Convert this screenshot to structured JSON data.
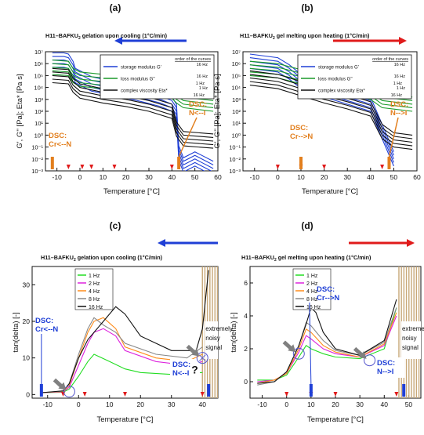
{
  "panels": [
    {
      "id": "a",
      "label": "(a)",
      "title_main": "H11–BAFKU",
      "title_sub": "2",
      "title_rest": " gelation upon cooling (1°C/min)",
      "arrow_direction": "left",
      "arrow_color": "#1f3fd6",
      "xlabel": "Temperature [°C]",
      "ylabel": "G', G'' [Pa]; Eta* [Pa s]",
      "chart_data": {
        "type": "line",
        "xlim": [
          -15,
          60
        ],
        "xticks": [
          "-10",
          "0",
          "10",
          "20",
          "30",
          "40",
          "50",
          "60"
        ],
        "ylim_log10": [
          -3,
          7
        ],
        "yticks": [
          "10⁻³",
          "10⁻²",
          "10⁻¹",
          "10⁰",
          "10¹",
          "10²",
          "10³",
          "10⁴",
          "10⁵",
          "10⁶",
          "10⁷"
        ],
        "series": [
          {
            "name": "storage modulus G'",
            "color": "#1f3fd6",
            "x": [
              -12,
              -7,
              -5,
              -3,
              -2,
              0,
              5,
              15,
              25,
              35,
              40,
              42,
              43,
              45,
              50,
              58
            ],
            "log10y": [
              6.3,
              6.3,
              6.2,
              5.6,
              5.0,
              4.8,
              4.3,
              3.9,
              3.5,
              3.0,
              2.6,
              2.0,
              -1.5,
              -2.5,
              -2.0,
              -2.8
            ]
          },
          {
            "name": "loss modulus G''",
            "color": "#1a9a2a",
            "x": [
              -12,
              -5,
              -3,
              0,
              10,
              20,
              30,
              40,
              42,
              45,
              58
            ],
            "log10y": [
              5.7,
              5.6,
              5.0,
              4.7,
              4.5,
              4.3,
              4.0,
              3.7,
              3.3,
              2.9,
              2.6
            ]
          },
          {
            "name": "complex viscosity Eta*",
            "color": "#111111",
            "x": [
              -12,
              -5,
              -3,
              0,
              10,
              20,
              30,
              40,
              42,
              45,
              58
            ],
            "log10y": [
              5.0,
              4.9,
              4.2,
              3.7,
              3.3,
              3.0,
              2.6,
              2.0,
              0.5,
              -0.3,
              -0.5
            ]
          }
        ],
        "legend": {
          "position": "top-right",
          "header": "order of the curves",
          "entries": [
            {
              "label": "storage modulus G'",
              "order_top": "16 Hz",
              "order_bottom": ""
            },
            {
              "label": "loss modulus G''",
              "order_top": "16 Hz",
              "order_bottom": "1 Hz"
            },
            {
              "label": "complex viscosity Eta*",
              "order_top": "1 Hz",
              "order_bottom": "16 Hz"
            }
          ]
        },
        "annotations": [
          {
            "text1": "DSC:",
            "text2": "Cr<--N",
            "color": "#e27f1e"
          },
          {
            "text1": "DSC:",
            "text2": "N<--I",
            "color": "#e27f1e"
          }
        ],
        "dsc_bars": [
          -12,
          43
        ],
        "red_markers": [
          -5,
          1,
          5,
          15,
          40
        ]
      }
    },
    {
      "id": "b",
      "label": "(b)",
      "title_main": "H11–BAFKU",
      "title_sub": "2",
      "title_rest": " gel melting upon heating (1°C/min)",
      "arrow_direction": "right",
      "arrow_color": "#e01b1b",
      "xlabel": "Temperature [°C]",
      "ylabel": "G', G'' [Pa]; Eta* [Pa s]",
      "chart_data": {
        "type": "line",
        "xlim": [
          -15,
          60
        ],
        "xticks": [
          "-10",
          "0",
          "10",
          "20",
          "30",
          "40",
          "50",
          "60"
        ],
        "ylim_log10": [
          -3,
          7
        ],
        "yticks": [
          "10⁻³",
          "10⁻²",
          "10⁻¹",
          "10⁰",
          "10¹",
          "10²",
          "10³",
          "10⁴",
          "10⁵",
          "10⁶",
          "10⁷"
        ],
        "series": [
          {
            "name": "storage modulus G'",
            "color": "#1f3fd6",
            "x": [
              -12,
              0,
              5,
              10,
              20,
              30,
              40,
              45,
              50
            ],
            "log10y": [
              6.2,
              5.9,
              5.3,
              4.5,
              3.8,
              3.2,
              2.6,
              0.3,
              -2.0
            ]
          },
          {
            "name": "loss modulus G''",
            "color": "#1a9a2a",
            "x": [
              -12,
              0,
              10,
              20,
              30,
              40,
              45,
              58
            ],
            "log10y": [
              5.6,
              5.4,
              4.9,
              4.4,
              4.0,
              3.6,
              2.9,
              2.6
            ]
          },
          {
            "name": "complex viscosity Eta*",
            "color": "#111111",
            "x": [
              -12,
              0,
              10,
              20,
              30,
              40,
              45,
              50,
              58
            ],
            "log10y": [
              4.8,
              4.5,
              3.9,
              3.3,
              2.8,
              2.2,
              0.3,
              -0.4,
              -0.6
            ]
          }
        ],
        "legend": {
          "position": "top-right",
          "header": "order of the curves",
          "entries": [
            {
              "label": "storage modulus G'",
              "order_top": "16 Hz",
              "order_bottom": ""
            },
            {
              "label": "loss modulus G''",
              "order_top": "16 Hz",
              "order_bottom": "1 Hz"
            },
            {
              "label": "complex viscosity Eta*",
              "order_top": "1 Hz",
              "order_bottom": "16 Hz"
            }
          ]
        },
        "annotations": [
          {
            "text1": "DSC:",
            "text2": "Cr-->N",
            "color": "#e27f1e"
          },
          {
            "text1": "DSC:",
            "text2": "N-->I",
            "color": "#e27f1e"
          }
        ],
        "dsc_bars": [
          10,
          48
        ],
        "red_markers": [
          0,
          10,
          20,
          45
        ]
      }
    },
    {
      "id": "c",
      "label": "(c)",
      "title_main": "H11–BAFKU",
      "title_sub": "2",
      "title_rest": " gelation upon cooling (1°C/min)",
      "arrow_direction": "left",
      "arrow_color": "#1f3fd6",
      "xlabel": "Temperature [°C]",
      "ylabel": "tan(delta) [-]",
      "chart_data": {
        "type": "line",
        "xlim": [
          -15,
          45
        ],
        "xticks": [
          "-10",
          "0",
          "10",
          "20",
          "30",
          "40"
        ],
        "ylim": [
          -1,
          35
        ],
        "yticks": [
          "0",
          "10",
          "20",
          "30"
        ],
        "series": [
          {
            "name": "1 Hz",
            "color": "#22dd22",
            "x": [
              -12,
              -5,
              -3,
              0,
              3,
              5,
              10,
              15,
              20,
              30,
              40
            ],
            "y": [
              0.5,
              0.6,
              1.5,
              5,
              9,
              11,
              9,
              7,
              6,
              5.5,
              6
            ]
          },
          {
            "name": "2 Hz",
            "color": "#dd22dd",
            "x": [
              -12,
              -5,
              -3,
              0,
              3,
              5,
              8,
              12,
              15,
              25,
              35,
              40
            ],
            "y": [
              0.5,
              0.7,
              2,
              8,
              14,
              17,
              18,
              16,
              12,
              9,
              8,
              9
            ]
          },
          {
            "name": "4 Hz",
            "color": "#ff8c1a",
            "x": [
              -12,
              -5,
              -3,
              0,
              3,
              5,
              8,
              12,
              15,
              25,
              35,
              40
            ],
            "y": [
              0.5,
              0.8,
              2.5,
              10,
              17,
              20,
              21,
              18,
              13,
              10,
              9,
              11
            ]
          },
          {
            "name": "8 Hz",
            "color": "#888888",
            "x": [
              -12,
              -5,
              -3,
              0,
              3,
              5,
              8,
              12,
              15,
              25,
              35,
              40
            ],
            "y": [
              0.5,
              0.9,
              3,
              11,
              18,
              21,
              19,
              17,
              14,
              11,
              10,
              13
            ]
          },
          {
            "name": "16 Hz",
            "color": "#111111",
            "x": [
              -12,
              -5,
              -3,
              0,
              3,
              5,
              8,
              12,
              15,
              20,
              30,
              38,
              40,
              42
            ],
            "y": [
              0.5,
              1.0,
              3,
              10,
              15,
              17,
              20,
              24,
              22,
              16,
              12,
              12,
              18,
              34
            ]
          }
        ],
        "legend": {
          "position": "top-left"
        },
        "annotations": [
          {
            "text1": "DSC:",
            "text2": "Cr<--N",
            "color": "#1f3fd6"
          },
          {
            "text1": "DSC:",
            "text2": "N<--I",
            "color": "#1f3fd6"
          },
          {
            "text1": "extremely",
            "text2": "noisy",
            "text3": "signal",
            "color": "#111111"
          },
          {
            "text1": "?",
            "color": "#111111"
          }
        ],
        "dsc_bars": [
          -12,
          42
        ],
        "red_markers": [
          -5,
          2,
          15,
          40
        ]
      }
    },
    {
      "id": "d",
      "label": "(d)",
      "title_main": "H11–BAFKU",
      "title_sub": "2",
      "title_rest": " gel melting upon heating (1°C/min)",
      "arrow_direction": "right",
      "arrow_color": "#e01b1b",
      "xlabel": "Temperature [°C]",
      "ylabel": "tan(delta) [-]",
      "chart_data": {
        "type": "line",
        "xlim": [
          -15,
          55
        ],
        "xticks": [
          "-10",
          "0",
          "10",
          "20",
          "30",
          "40",
          "50"
        ],
        "ylim": [
          -1,
          7
        ],
        "yticks": [
          "0",
          "2",
          "4",
          "6"
        ],
        "series": [
          {
            "name": "1 Hz",
            "color": "#22dd22",
            "x": [
              -12,
              -5,
              0,
              5,
              8,
              10,
              15,
              20,
              30,
              40,
              45
            ],
            "y": [
              0.1,
              0.1,
              0.4,
              1.5,
              2.2,
              2.0,
              1.7,
              1.5,
              1.4,
              2.0,
              4.5
            ]
          },
          {
            "name": "2 Hz",
            "color": "#dd22dd",
            "x": [
              -12,
              -5,
              0,
              5,
              8,
              10,
              15,
              20,
              30,
              40,
              45
            ],
            "y": [
              0.0,
              0.1,
              0.5,
              1.8,
              2.8,
              2.6,
              2.0,
              1.7,
              1.5,
              2.2,
              4.0
            ]
          },
          {
            "name": "4 Hz",
            "color": "#ff8c1a",
            "x": [
              -12,
              -5,
              0,
              5,
              8,
              10,
              15,
              20,
              30,
              40,
              45
            ],
            "y": [
              -0.1,
              0.1,
              0.5,
              2.0,
              3.2,
              3.0,
              2.2,
              1.8,
              1.5,
              2.3,
              4.2
            ]
          },
          {
            "name": "8 Hz",
            "color": "#888888",
            "x": [
              -12,
              -5,
              0,
              5,
              8,
              10,
              15,
              20,
              30,
              40,
              45
            ],
            "y": [
              -0.2,
              0.0,
              0.6,
              2.2,
              3.6,
              3.4,
              2.5,
              1.9,
              1.6,
              2.4,
              4.5
            ]
          },
          {
            "name": "16 Hz",
            "color": "#111111",
            "x": [
              -12,
              -5,
              0,
              5,
              8,
              10,
              12,
              15,
              20,
              30,
              40,
              45
            ],
            "y": [
              -0.1,
              0.0,
              0.6,
              2.2,
              3.5,
              4.5,
              4.2,
              3.0,
              2.0,
              1.6,
              2.5,
              5.0
            ]
          }
        ],
        "legend": {
          "position": "top-left"
        },
        "annotations": [
          {
            "text1": "DSC:",
            "text2": "Cr-->N",
            "color": "#1f3fd6"
          },
          {
            "text1": "DSC:",
            "text2": "N-->I",
            "color": "#1f3fd6"
          },
          {
            "text1": "extremely",
            "text2": "noisy",
            "text3": "signal",
            "color": "#111111"
          }
        ],
        "dsc_bars": [
          10,
          48
        ],
        "red_markers": [
          0,
          10,
          20,
          45
        ]
      }
    }
  ]
}
